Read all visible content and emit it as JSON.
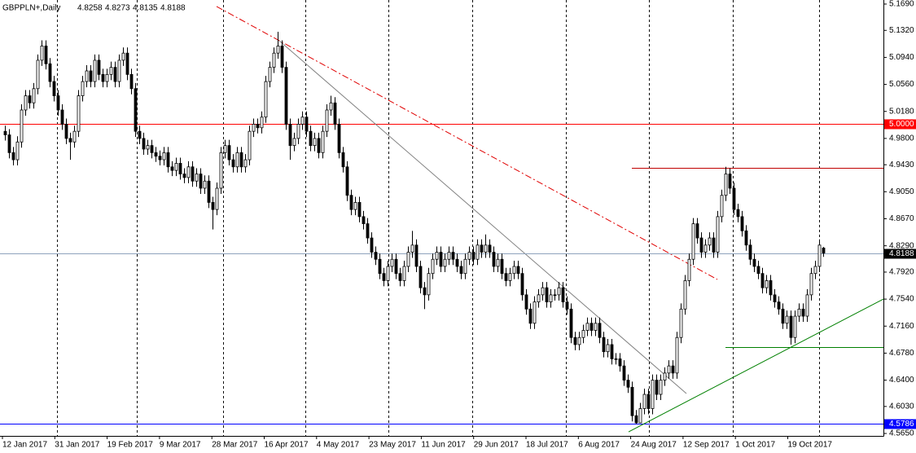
{
  "chart_data": {
    "type": "candlestick",
    "symbol": "GBPPLN+,Daily",
    "open": [
      4.99,
      4.985,
      4.96,
      4.95,
      4.975,
      5.02,
      5.04,
      5.03,
      5.05,
      5.09,
      5.11,
      5.085,
      5.06,
      5.04,
      5.02,
      5,
      4.98,
      4.975,
      4.99,
      5.04,
      5.06,
      5.075,
      5.06,
      5.09,
      5.07,
      5.06,
      5.07,
      5.08,
      5.06,
      5.09,
      5.1,
      5.07,
      5.05,
      4.99,
      4.98,
      4.965,
      4.97,
      4.96,
      4.955,
      4.95,
      4.96,
      4.94,
      4.935,
      4.945,
      4.93,
      4.925,
      4.94,
      4.92,
      4.93,
      4.91,
      4.92,
      4.89,
      4.88,
      4.91,
      4.96,
      4.97,
      4.95,
      4.94,
      4.96,
      4.94,
      4.95,
      4.99,
      5,
      4.995,
      5.01,
      5.06,
      5.08,
      5.1,
      5.11,
      5.08,
      5,
      4.97,
      4.98,
      5,
      5.01,
      4.99,
      4.97,
      4.98,
      4.96,
      4.99,
      5.02,
      5.03,
      5,
      4.96,
      4.94,
      4.9,
      4.88,
      4.89,
      4.87,
      4.86,
      4.84,
      4.82,
      4.81,
      4.79,
      4.78,
      4.8,
      4.81,
      4.79,
      4.78,
      4.8,
      4.82,
      4.83,
      4.8,
      4.77,
      4.76,
      4.79,
      4.81,
      4.82,
      4.8,
      4.81,
      4.82,
      4.81,
      4.8,
      4.79,
      4.81,
      4.82,
      4.81,
      4.83,
      4.82,
      4.83,
      4.82,
      4.8,
      4.81,
      4.79,
      4.78,
      4.79,
      4.8,
      4.79,
      4.76,
      4.74,
      4.72,
      4.75,
      4.76,
      4.77,
      4.75,
      4.76,
      4.76,
      4.77,
      4.75,
      4.74,
      4.7,
      4.69,
      4.7,
      4.71,
      4.72,
      4.71,
      4.72,
      4.7,
      4.68,
      4.69,
      4.67,
      4.67,
      4.66,
      4.64,
      4.63,
      4.59,
      4.58,
      4.6,
      4.62,
      4.6,
      4.64,
      4.62,
      4.64,
      4.65,
      4.66,
      4.65,
      4.7,
      4.74,
      4.78,
      4.81,
      4.86,
      4.84,
      4.82,
      4.83,
      4.84,
      4.82,
      4.87,
      4.9,
      4.93,
      4.91,
      4.88,
      4.87,
      4.85,
      4.83,
      4.81,
      4.8,
      4.79,
      4.77,
      4.78,
      4.76,
      4.75,
      4.74,
      4.72,
      4.73,
      4.7,
      4.73,
      4.74,
      4.73,
      4.76,
      4.79,
      4.8,
      4.8258
    ],
    "high": [
      4.998,
      4.993,
      4.968,
      4.983,
      5.028,
      5.048,
      5.048,
      5.058,
      5.098,
      5.118,
      5.118,
      5.093,
      5.068,
      5.048,
      5.028,
      5.008,
      4.988,
      4.998,
      5.048,
      5.068,
      5.083,
      5.083,
      5.098,
      5.098,
      5.078,
      5.078,
      5.088,
      5.088,
      5.098,
      5.108,
      5.108,
      5.078,
      5.058,
      4.998,
      4.988,
      4.978,
      4.978,
      4.968,
      4.963,
      4.968,
      4.968,
      4.948,
      4.953,
      4.953,
      4.938,
      4.948,
      4.948,
      4.938,
      4.938,
      4.928,
      4.928,
      4.898,
      4.918,
      4.968,
      4.978,
      4.978,
      4.958,
      4.968,
      4.968,
      4.958,
      4.998,
      5.008,
      5.008,
      5.018,
      5.068,
      5.088,
      5.108,
      5.13,
      5.118,
      5.088,
      5.008,
      4.988,
      5.008,
      5.018,
      5.018,
      4.998,
      4.988,
      4.988,
      4.998,
      5.028,
      5.04,
      5.038,
      5.008,
      4.968,
      4.948,
      4.908,
      4.898,
      4.898,
      4.878,
      4.868,
      4.848,
      4.828,
      4.818,
      4.798,
      4.808,
      4.818,
      4.818,
      4.798,
      4.808,
      4.828,
      4.85,
      4.838,
      4.808,
      4.778,
      4.798,
      4.818,
      4.828,
      4.828,
      4.818,
      4.828,
      4.828,
      4.818,
      4.808,
      4.818,
      4.828,
      4.828,
      4.838,
      4.838,
      4.845,
      4.838,
      4.828,
      4.818,
      4.818,
      4.798,
      4.798,
      4.808,
      4.808,
      4.798,
      4.768,
      4.748,
      4.758,
      4.768,
      4.778,
      4.778,
      4.768,
      4.768,
      4.778,
      4.778,
      4.758,
      4.748,
      4.708,
      4.708,
      4.718,
      4.728,
      4.728,
      4.728,
      4.728,
      4.708,
      4.698,
      4.698,
      4.678,
      4.678,
      4.668,
      4.648,
      4.638,
      4.598,
      4.608,
      4.628,
      4.628,
      4.648,
      4.648,
      4.648,
      4.658,
      4.668,
      4.668,
      4.708,
      4.748,
      4.788,
      4.818,
      4.868,
      4.868,
      4.848,
      4.838,
      4.848,
      4.848,
      4.878,
      4.908,
      4.94,
      4.938,
      4.918,
      4.888,
      4.878,
      4.858,
      4.838,
      4.818,
      4.808,
      4.798,
      4.788,
      4.788,
      4.768,
      4.758,
      4.748,
      4.738,
      4.738,
      4.738,
      4.748,
      4.748,
      4.768,
      4.798,
      4.808,
      4.838,
      4.8273
    ],
    "low": [
      4.977,
      4.952,
      4.942,
      4.942,
      4.967,
      5.012,
      5.022,
      5.022,
      5.042,
      5.082,
      5.077,
      5.052,
      5.032,
      5.012,
      4.992,
      4.972,
      4.95,
      4.967,
      4.982,
      5.032,
      5.052,
      5.052,
      5.052,
      5.062,
      5.052,
      5.052,
      5.062,
      5.052,
      5.052,
      5.082,
      5.062,
      5.042,
      4.982,
      4.972,
      4.957,
      4.957,
      4.952,
      4.947,
      4.942,
      4.942,
      4.932,
      4.927,
      4.927,
      4.922,
      4.917,
      4.917,
      4.912,
      4.912,
      4.902,
      4.902,
      4.882,
      4.852,
      4.872,
      4.902,
      4.952,
      4.942,
      4.932,
      4.932,
      4.932,
      4.932,
      4.942,
      4.982,
      4.987,
      4.987,
      5.002,
      5.052,
      5.072,
      5.092,
      5.072,
      4.992,
      4.95,
      4.962,
      4.972,
      4.992,
      4.982,
      4.962,
      4.962,
      4.952,
      4.952,
      4.982,
      5.012,
      4.992,
      4.952,
      4.932,
      4.892,
      4.872,
      4.872,
      4.862,
      4.852,
      4.832,
      4.812,
      4.802,
      4.782,
      4.772,
      4.772,
      4.792,
      4.782,
      4.772,
      4.772,
      4.792,
      4.812,
      4.792,
      4.762,
      4.74,
      4.752,
      4.782,
      4.802,
      4.792,
      4.792,
      4.802,
      4.802,
      4.792,
      4.782,
      4.782,
      4.802,
      4.802,
      4.802,
      4.812,
      4.812,
      4.812,
      4.792,
      4.792,
      4.782,
      4.772,
      4.772,
      4.782,
      4.782,
      4.752,
      4.732,
      4.712,
      4.712,
      4.742,
      4.752,
      4.742,
      4.742,
      4.752,
      4.752,
      4.742,
      4.732,
      4.692,
      4.682,
      4.682,
      4.692,
      4.702,
      4.702,
      4.702,
      4.692,
      4.672,
      4.672,
      4.662,
      4.662,
      4.652,
      4.632,
      4.622,
      4.582,
      4.5786,
      4.584,
      4.592,
      4.592,
      4.592,
      4.612,
      4.612,
      4.632,
      4.642,
      4.642,
      4.642,
      4.692,
      4.732,
      4.772,
      4.802,
      4.832,
      4.812,
      4.812,
      4.822,
      4.812,
      4.812,
      4.862,
      4.892,
      4.902,
      4.872,
      4.862,
      4.842,
      4.822,
      4.802,
      4.792,
      4.782,
      4.762,
      4.762,
      4.752,
      4.742,
      4.732,
      4.712,
      4.712,
      4.69,
      4.692,
      4.722,
      4.722,
      4.722,
      4.752,
      4.782,
      4.792,
      4.8135
    ],
    "close": [
      4.985,
      4.96,
      4.95,
      4.975,
      5.02,
      5.04,
      5.03,
      5.05,
      5.09,
      5.11,
      5.085,
      5.06,
      5.04,
      5.02,
      5,
      4.98,
      4.975,
      4.99,
      5.04,
      5.06,
      5.075,
      5.06,
      5.09,
      5.07,
      5.06,
      5.07,
      5.08,
      5.06,
      5.09,
      5.1,
      5.07,
      5.05,
      4.99,
      4.98,
      4.965,
      4.97,
      4.96,
      4.955,
      4.95,
      4.96,
      4.94,
      4.935,
      4.945,
      4.93,
      4.925,
      4.94,
      4.92,
      4.93,
      4.91,
      4.92,
      4.89,
      4.88,
      4.91,
      4.96,
      4.97,
      4.95,
      4.94,
      4.96,
      4.94,
      4.95,
      4.99,
      5,
      4.995,
      5.01,
      5.06,
      5.08,
      5.1,
      5.11,
      5.08,
      5,
      4.97,
      4.98,
      5,
      5.01,
      4.99,
      4.97,
      4.98,
      4.96,
      4.99,
      5.02,
      5.03,
      5,
      4.96,
      4.94,
      4.9,
      4.88,
      4.89,
      4.87,
      4.86,
      4.84,
      4.82,
      4.81,
      4.79,
      4.78,
      4.8,
      4.81,
      4.79,
      4.78,
      4.8,
      4.82,
      4.83,
      4.8,
      4.77,
      4.76,
      4.79,
      4.81,
      4.82,
      4.8,
      4.81,
      4.82,
      4.81,
      4.8,
      4.79,
      4.81,
      4.82,
      4.81,
      4.83,
      4.82,
      4.83,
      4.82,
      4.8,
      4.81,
      4.79,
      4.78,
      4.79,
      4.8,
      4.79,
      4.76,
      4.74,
      4.72,
      4.75,
      4.76,
      4.77,
      4.75,
      4.76,
      4.76,
      4.77,
      4.75,
      4.74,
      4.7,
      4.69,
      4.7,
      4.71,
      4.72,
      4.71,
      4.72,
      4.7,
      4.68,
      4.69,
      4.67,
      4.67,
      4.66,
      4.64,
      4.63,
      4.59,
      4.58,
      4.6,
      4.62,
      4.6,
      4.64,
      4.62,
      4.64,
      4.65,
      4.66,
      4.65,
      4.7,
      4.74,
      4.78,
      4.81,
      4.86,
      4.84,
      4.82,
      4.83,
      4.84,
      4.82,
      4.87,
      4.9,
      4.93,
      4.91,
      4.88,
      4.87,
      4.85,
      4.83,
      4.81,
      4.8,
      4.79,
      4.77,
      4.78,
      4.76,
      4.75,
      4.74,
      4.72,
      4.73,
      4.7,
      4.73,
      4.74,
      4.73,
      4.76,
      4.79,
      4.8,
      4.83,
      4.8188
    ],
    "x_labels": [
      "12 Jan 2017",
      "31 Jan 2017",
      "19 Feb 2017",
      "9 Mar 2017",
      "28 Mar 2017",
      "16 Apr 2017",
      "4 May 2017",
      "23 May 2017",
      "11 Jun 2017",
      "29 Jun 2017",
      "18 Jul 2017",
      "6 Aug 2017",
      "24 Aug 2017",
      "12 Sep 2017",
      "1 Oct 2017",
      "19 Oct 2017"
    ],
    "ylim": [
      4.5616,
      5.1747
    ],
    "yticks": [
      {
        "value": 5.169,
        "label": "5.1690"
      },
      {
        "value": 5.132,
        "label": "5.1320"
      },
      {
        "value": 5.094,
        "label": "5.0940"
      },
      {
        "value": 5.056,
        "label": "5.0560"
      },
      {
        "value": 5.018,
        "label": "5.0180"
      },
      {
        "value": 4.98,
        "label": "4.9800"
      },
      {
        "value": 4.943,
        "label": "4.9430"
      },
      {
        "value": 4.905,
        "label": "4.9050"
      },
      {
        "value": 4.867,
        "label": "4.8670"
      },
      {
        "value": 4.829,
        "label": "4.8290"
      },
      {
        "value": 4.792,
        "label": "4.7920"
      },
      {
        "value": 4.754,
        "label": "4.7540"
      },
      {
        "value": 4.716,
        "label": "4.7160"
      },
      {
        "value": 4.678,
        "label": "4.6780"
      },
      {
        "value": 4.64,
        "label": "4.6400"
      },
      {
        "value": 4.603,
        "label": "4.6030"
      },
      {
        "value": 4.565,
        "label": "4.5650"
      }
    ],
    "levels": [
      {
        "value": 5,
        "label": "5.0000",
        "color": "#ff0000"
      },
      {
        "value": 4.5786,
        "color": "#0000ff"
      },
      {
        "value": 4.939,
        "color": "#c00000",
        "start": 154
      },
      {
        "value": 4.686,
        "color": "#008000",
        "start": 177
      }
    ],
    "trendlines": [
      {
        "from": [
          52,
          5.1656
        ],
        "to": [
          175,
          4.7816
        ],
        "color": "#e00000",
        "style": "dashdot"
      },
      {
        "from": [
          67.4,
          5.1174
        ],
        "to": [
          167.4,
          4.6212
        ],
        "color": "#808080",
        "style": "solid"
      },
      {
        "from": [
          153.2,
          4.5673
        ],
        "to": [
          215.8,
          4.7541
        ],
        "color": "#008000",
        "style": "solid"
      }
    ],
    "bid_color": "#8fa3bd",
    "up_color": "#ffffff",
    "down_color": "#000000"
  }
}
